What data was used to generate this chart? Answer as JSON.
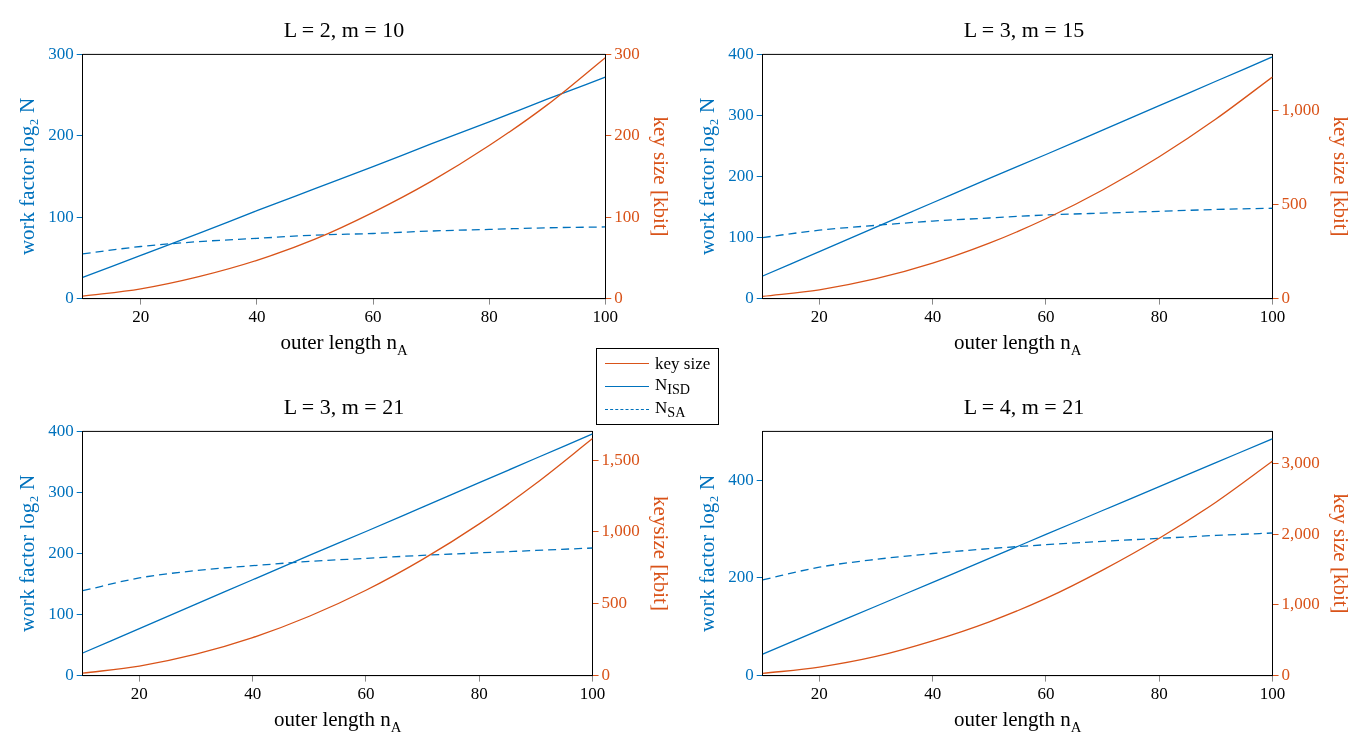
{
  "chart_data": [
    {
      "type": "line",
      "title": "L = 2, m = 10",
      "xlabel": "outer length n$_{A}$",
      "ylabel": "work factor log₂ N",
      "y2label": "key size [kbit]",
      "x": [
        10,
        20,
        30,
        40,
        50,
        60,
        70,
        80,
        90,
        100
      ],
      "xlim": [
        10,
        100
      ],
      "xticks": [
        20,
        40,
        60,
        80,
        100
      ],
      "ylim": [
        0,
        300
      ],
      "yticks": [
        0,
        100,
        200,
        300
      ],
      "y2lim": [
        0,
        300
      ],
      "y2ticks": [
        0,
        100,
        200,
        300
      ],
      "grid": false,
      "legend": "bottom right",
      "series": [
        {
          "name": "key size",
          "color": "#d95319",
          "axis": "y2",
          "line_style": "solid",
          "values": [
            3,
            12,
            27,
            47,
            73,
            106,
            144,
            188,
            238,
            296
          ]
        },
        {
          "name": "N$_{ISD}$",
          "color": "#0072bd",
          "line_style": "solid",
          "values": [
            26,
            53,
            80,
            108,
            135,
            162,
            190,
            217,
            245,
            272
          ]
        },
        {
          "name": "N$_{SA}$",
          "color": "#0072bd",
          "line_style": "dashed",
          "values": [
            55,
            64,
            70,
            74,
            78,
            80,
            83,
            85,
            87,
            88
          ]
        }
      ]
    },
    {
      "type": "line",
      "title": "L = 3, m = 15",
      "xlabel": "outer length n$_{A}$",
      "ylabel": "work factor log₂ N",
      "y2label": "key size [kbit]",
      "x": [
        10,
        20,
        30,
        40,
        50,
        60,
        70,
        80,
        90,
        100
      ],
      "xlim": [
        10,
        100
      ],
      "xticks": [
        20,
        40,
        60,
        80,
        100
      ],
      "ylim": [
        0,
        400
      ],
      "yticks": [
        0,
        100,
        200,
        300,
        400
      ],
      "y2lim": [
        0,
        1300
      ],
      "y2ticks": [
        0,
        500,
        {
          "value": 1000,
          "label": "1,000"
        }
      ],
      "grid": false,
      "series": [
        {
          "color": "#d95319",
          "axis": "y2",
          "line_style": "solid",
          "values": [
            12,
            47,
            106,
            189,
            295,
            425,
            578,
            755,
            956,
            1180
          ]
        },
        {
          "color": "#0072bd",
          "line_style": "solid",
          "values": [
            37,
            77,
            117,
            157,
            197,
            236,
            276,
            316,
            356,
            396
          ]
        },
        {
          "color": "#0072bd",
          "line_style": "dashed",
          "values": [
            100,
            112,
            120,
            127,
            132,
            137,
            140,
            143,
            146,
            148
          ]
        }
      ]
    },
    {
      "type": "line",
      "title": "L = 3, m = 21",
      "xlabel": "outer length n$_{A}$",
      "ylabel": "work factor log₂ N",
      "y2label": "keysize [kbit]",
      "x": [
        10,
        20,
        30,
        40,
        50,
        60,
        70,
        80,
        90,
        100
      ],
      "xlim": [
        10,
        100
      ],
      "xticks": [
        20,
        40,
        60,
        80,
        100
      ],
      "ylim": [
        0,
        400
      ],
      "yticks": [
        0,
        100,
        200,
        300,
        400
      ],
      "y2lim": [
        0,
        1700
      ],
      "y2ticks": [
        0,
        500,
        {
          "value": 1000,
          "label": "1,000"
        },
        {
          "value": 1500,
          "label": "1,500"
        }
      ],
      "grid": false,
      "series": [
        {
          "color": "#d95319",
          "axis": "y2",
          "line_style": "solid",
          "values": [
            17,
            66,
            149,
            264,
            413,
            594,
            809,
            1056,
            1337,
            1650
          ]
        },
        {
          "color": "#0072bd",
          "line_style": "solid",
          "values": [
            37,
            77,
            117,
            157,
            197,
            236,
            276,
            316,
            356,
            396
          ]
        },
        {
          "color": "#0072bd",
          "line_style": "dashed",
          "values": [
            139,
            160,
            172,
            180,
            187,
            192,
            197,
            201,
            205,
            209
          ]
        }
      ]
    },
    {
      "type": "line",
      "title": "L = 4, m = 21",
      "xlabel": "outer length n$_{A}$",
      "ylabel": "work factor log₂ N",
      "y2label": "key size [kbit]",
      "x": [
        10,
        20,
        30,
        40,
        50,
        60,
        70,
        80,
        90,
        100
      ],
      "xlim": [
        10,
        100
      ],
      "xticks": [
        20,
        40,
        60,
        80,
        100
      ],
      "ylim": [
        0,
        500
      ],
      "yticks": [
        0,
        200,
        400
      ],
      "y2lim": [
        0,
        3450
      ],
      "y2ticks": [
        0,
        {
          "value": 1000,
          "label": "1,000"
        },
        {
          "value": 2000,
          "label": "2,000"
        },
        {
          "value": 3000,
          "label": "3,000"
        }
      ],
      "grid": false,
      "series": [
        {
          "color": "#d95319",
          "axis": "y2",
          "line_style": "solid",
          "values": [
            30,
            120,
            270,
            490,
            760,
            1090,
            1490,
            1940,
            2450,
            3030
          ]
        },
        {
          "color": "#0072bd",
          "line_style": "solid",
          "values": [
            44,
            93,
            142,
            191,
            240,
            289,
            338,
            387,
            436,
            485
          ]
        },
        {
          "color": "#0072bd",
          "line_style": "dashed",
          "values": [
            196,
            222,
            238,
            250,
            260,
            268,
            275,
            281,
            287,
            292
          ]
        }
      ]
    }
  ]
}
